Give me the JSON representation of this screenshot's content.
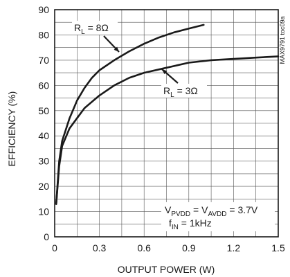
{
  "chart_data": {
    "type": "line",
    "xlabel": "OUTPUT POWER (W)",
    "ylabel": "EFFICIENCY (%)",
    "xlim": [
      0,
      1.5
    ],
    "ylim": [
      0,
      90
    ],
    "x_ticks": [
      "0",
      "0.3",
      "0.6",
      "0.9",
      "1.2",
      "1.5"
    ],
    "y_ticks": [
      "0",
      "10",
      "20",
      "30",
      "40",
      "50",
      "60",
      "70",
      "80",
      "90"
    ],
    "grid": true,
    "series": [
      {
        "name": "RL = 8Ω",
        "label_main": "R",
        "label_sub": "L",
        "label_rest": " = 8Ω",
        "points": [
          [
            0.01,
            13
          ],
          [
            0.03,
            30
          ],
          [
            0.05,
            38
          ],
          [
            0.1,
            47
          ],
          [
            0.15,
            54
          ],
          [
            0.2,
            59
          ],
          [
            0.25,
            63
          ],
          [
            0.3,
            66
          ],
          [
            0.4,
            70
          ],
          [
            0.5,
            73.5
          ],
          [
            0.6,
            76.5
          ],
          [
            0.7,
            79
          ],
          [
            0.8,
            81
          ],
          [
            0.9,
            82.5
          ],
          [
            1.0,
            84
          ]
        ]
      },
      {
        "name": "RL = 3Ω",
        "label_main": "R",
        "label_sub": "L",
        "label_rest": " = 3Ω",
        "points": [
          [
            0.01,
            13
          ],
          [
            0.03,
            28
          ],
          [
            0.05,
            36
          ],
          [
            0.1,
            43
          ],
          [
            0.15,
            47
          ],
          [
            0.2,
            51
          ],
          [
            0.3,
            56
          ],
          [
            0.4,
            60
          ],
          [
            0.5,
            63
          ],
          [
            0.6,
            65
          ],
          [
            0.75,
            67
          ],
          [
            0.9,
            69
          ],
          [
            1.05,
            70
          ],
          [
            1.2,
            70.5
          ],
          [
            1.35,
            71
          ],
          [
            1.5,
            71.5
          ]
        ]
      }
    ],
    "annotations": {
      "line1": {
        "v": "V",
        "sub1": "PVDD",
        "mid": " = V",
        "sub2": "AVDD",
        "rest": " = 3.7V"
      },
      "line2": {
        "f": "f",
        "sub": "IN",
        "rest": " = 1kHz"
      }
    },
    "part_id": "MAX9791 toc09a"
  }
}
